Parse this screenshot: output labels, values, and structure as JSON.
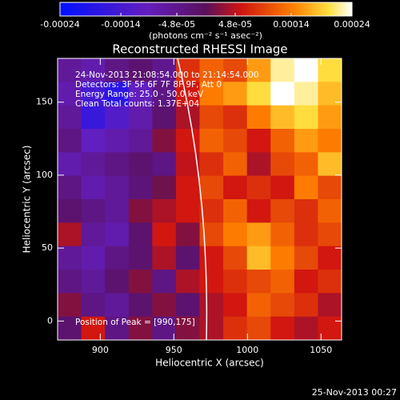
{
  "chart_data": {
    "type": "heatmap",
    "title": "Reconstructed RHESSI Image",
    "x_label": "Heliocentric X (arcsec)",
    "y_label": "Heliocentric Y (arcsec)",
    "colorbar_label": "(photons cm⁻² s⁻¹ asec⁻²)",
    "clim": [
      -0.00024,
      0.00024
    ],
    "colorbar_ticks": [
      -0.00024,
      -0.00014,
      {
        "value": -4.8e-05,
        "label": "-4.8e-05"
      },
      {
        "value": 4.8e-05,
        "label": "4.8e-05"
      },
      0.00014,
      0.00024
    ],
    "xlim": [
      871,
      1064
    ],
    "ylim": [
      -13,
      180
    ],
    "xticks": [
      900,
      950,
      1000,
      1050
    ],
    "yticks": [
      0,
      50,
      100,
      150
    ],
    "annotations": [
      "24-Nov-2013 21:08:54.000 to 21:14:54.000",
      "Detectors: 3F 5F 6F 7F 8F 9F, Att 0",
      "Energy Range: 25.0 - 50.0 keV",
      "Clean    Total counts: 1.37E+04"
    ],
    "peak_note": "Position of Peak = [990,175]",
    "timestamp": "25-Nov-2013 00:27",
    "z": [
      [
        -6e-05,
        -8e-05,
        -4e-05,
        -2e-05,
        -5e-05,
        8e-05,
        0.00012,
        0.0001,
        0.00016,
        0.00022,
        0.00024,
        0.0002
      ],
      [
        -8e-05,
        -0.00014,
        -0.00018,
        -0.0001,
        -4e-05,
        6e-05,
        0.00014,
        0.00016,
        0.0002,
        0.00024,
        0.00022,
        0.00018
      ],
      [
        -6e-05,
        -0.00016,
        -0.00012,
        -8e-05,
        -2e-05,
        4e-05,
        0.0001,
        8e-05,
        0.00014,
        0.00018,
        0.0002,
        0.00016
      ],
      [
        -4e-05,
        -0.0001,
        -8e-05,
        -6e-05,
        2e-05,
        6e-05,
        0.00012,
        0.0001,
        6e-05,
        0.00012,
        0.00016,
        0.00014
      ],
      [
        -8e-05,
        -6e-05,
        -4e-05,
        -2e-05,
        -4e-05,
        5e-05,
        8e-05,
        0.00012,
        4e-05,
        0.0001,
        0.00012,
        0.00018
      ],
      [
        -4e-05,
        -8e-05,
        -6e-05,
        -3e-05,
        1e-05,
        6e-05,
        0.0001,
        6e-05,
        8e-05,
        6e-05,
        0.00014,
        0.0001
      ],
      [
        -2e-05,
        -4e-05,
        -6e-05,
        2e-05,
        4e-05,
        6e-05,
        8e-05,
        0.00012,
        6e-05,
        0.0001,
        8e-05,
        0.00012
      ],
      [
        4e-05,
        -6e-05,
        -8e-05,
        -2e-05,
        6e-05,
        2e-05,
        0.0001,
        0.00014,
        0.00016,
        0.00012,
        8e-05,
        0.0001
      ],
      [
        -6e-05,
        -8e-05,
        -4e-05,
        -2e-05,
        4e-05,
        -2e-05,
        6e-05,
        0.0001,
        0.00018,
        0.00014,
        0.0001,
        6e-05
      ],
      [
        -4e-05,
        -6e-05,
        -2e-05,
        2e-05,
        -4e-05,
        4e-05,
        6e-05,
        8e-05,
        0.0001,
        0.00012,
        6e-05,
        8e-05
      ],
      [
        2e-05,
        -4e-05,
        -6e-05,
        -2e-05,
        2e-05,
        -2e-05,
        4e-05,
        6e-05,
        0.00012,
        0.0001,
        8e-05,
        4e-05
      ],
      [
        -2e-05,
        6e-05,
        -4e-05,
        2e-05,
        -4e-05,
        2e-05,
        4e-05,
        8e-05,
        0.0001,
        6e-05,
        4e-05,
        6e-05
      ]
    ]
  }
}
